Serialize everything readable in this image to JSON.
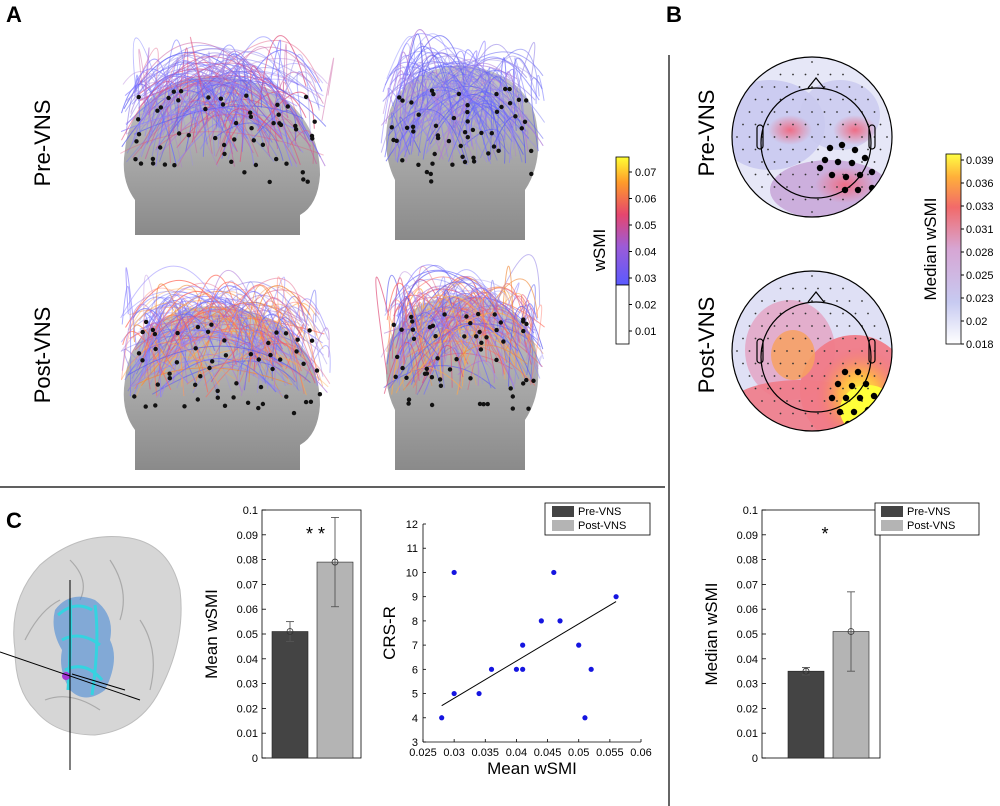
{
  "panels": {
    "a": "A",
    "b": "B",
    "c": "C"
  },
  "rows": {
    "pre": "Pre-VNS",
    "post": "Post-VNS"
  },
  "colorbar_a": {
    "label": "wSMI",
    "ticks": [
      "0.07",
      "0.06",
      "0.05",
      "0.04",
      "0.03",
      "0.02",
      "0.01"
    ]
  },
  "colorbar_b": {
    "label": "Median wSMI",
    "ticks": [
      "0.039",
      "0.036",
      "0.033",
      "0.031",
      "0.028",
      "0.025",
      "0.023",
      "0.02",
      "0.018"
    ]
  },
  "colors": {
    "pre": "#444444",
    "post": "#b4b4b4",
    "scatter": "#1515e0"
  },
  "legend": {
    "pre": "Pre-VNS",
    "post": "Post-VNS"
  },
  "chart_data": [
    {
      "id": "mean-wsmi-bar",
      "type": "bar",
      "categories": [
        "Pre-VNS",
        "Post-VNS"
      ],
      "values": [
        0.051,
        0.079
      ],
      "errors": [
        0.004,
        0.018
      ],
      "ylabel": "Mean wSMI",
      "ylim": [
        0,
        0.1
      ],
      "yticks": [
        "0",
        "0.01",
        "0.02",
        "0.03",
        "0.04",
        "0.05",
        "0.06",
        "0.07",
        "0.08",
        "0.09",
        "0.1"
      ],
      "annotation": "* *"
    },
    {
      "id": "crs-scatter",
      "type": "scatter",
      "x": [
        0.028,
        0.03,
        0.03,
        0.034,
        0.036,
        0.04,
        0.041,
        0.041,
        0.044,
        0.046,
        0.047,
        0.05,
        0.051,
        0.052,
        0.056
      ],
      "y": [
        4,
        5,
        10,
        5,
        6,
        6,
        6,
        7,
        8,
        10,
        8,
        7,
        4,
        6,
        9
      ],
      "fit": {
        "x": [
          0.028,
          0.056
        ],
        "y": [
          4.5,
          8.8
        ]
      },
      "xlabel": "Mean wSMI",
      "ylabel": "CRS-R",
      "xlim": [
        0.025,
        0.06
      ],
      "ylim": [
        3,
        12
      ],
      "xticks": [
        "0.025",
        "0.03",
        "0.035",
        "0.04",
        "0.045",
        "0.05",
        "0.055",
        "0.06"
      ],
      "yticks": [
        "3",
        "4",
        "5",
        "6",
        "7",
        "8",
        "9",
        "10",
        "11",
        "12"
      ]
    },
    {
      "id": "median-wsmi-bar",
      "type": "bar",
      "categories": [
        "Pre-VNS",
        "Post-VNS"
      ],
      "values": [
        0.035,
        0.051
      ],
      "errors": [
        0.0015,
        0.016
      ],
      "ylabel": "Median wSMI",
      "ylim": [
        0,
        0.1
      ],
      "yticks": [
        "0",
        "0.01",
        "0.02",
        "0.03",
        "0.04",
        "0.05",
        "0.06",
        "0.07",
        "0.08",
        "0.09",
        "0.1"
      ],
      "annotation": "*"
    }
  ]
}
